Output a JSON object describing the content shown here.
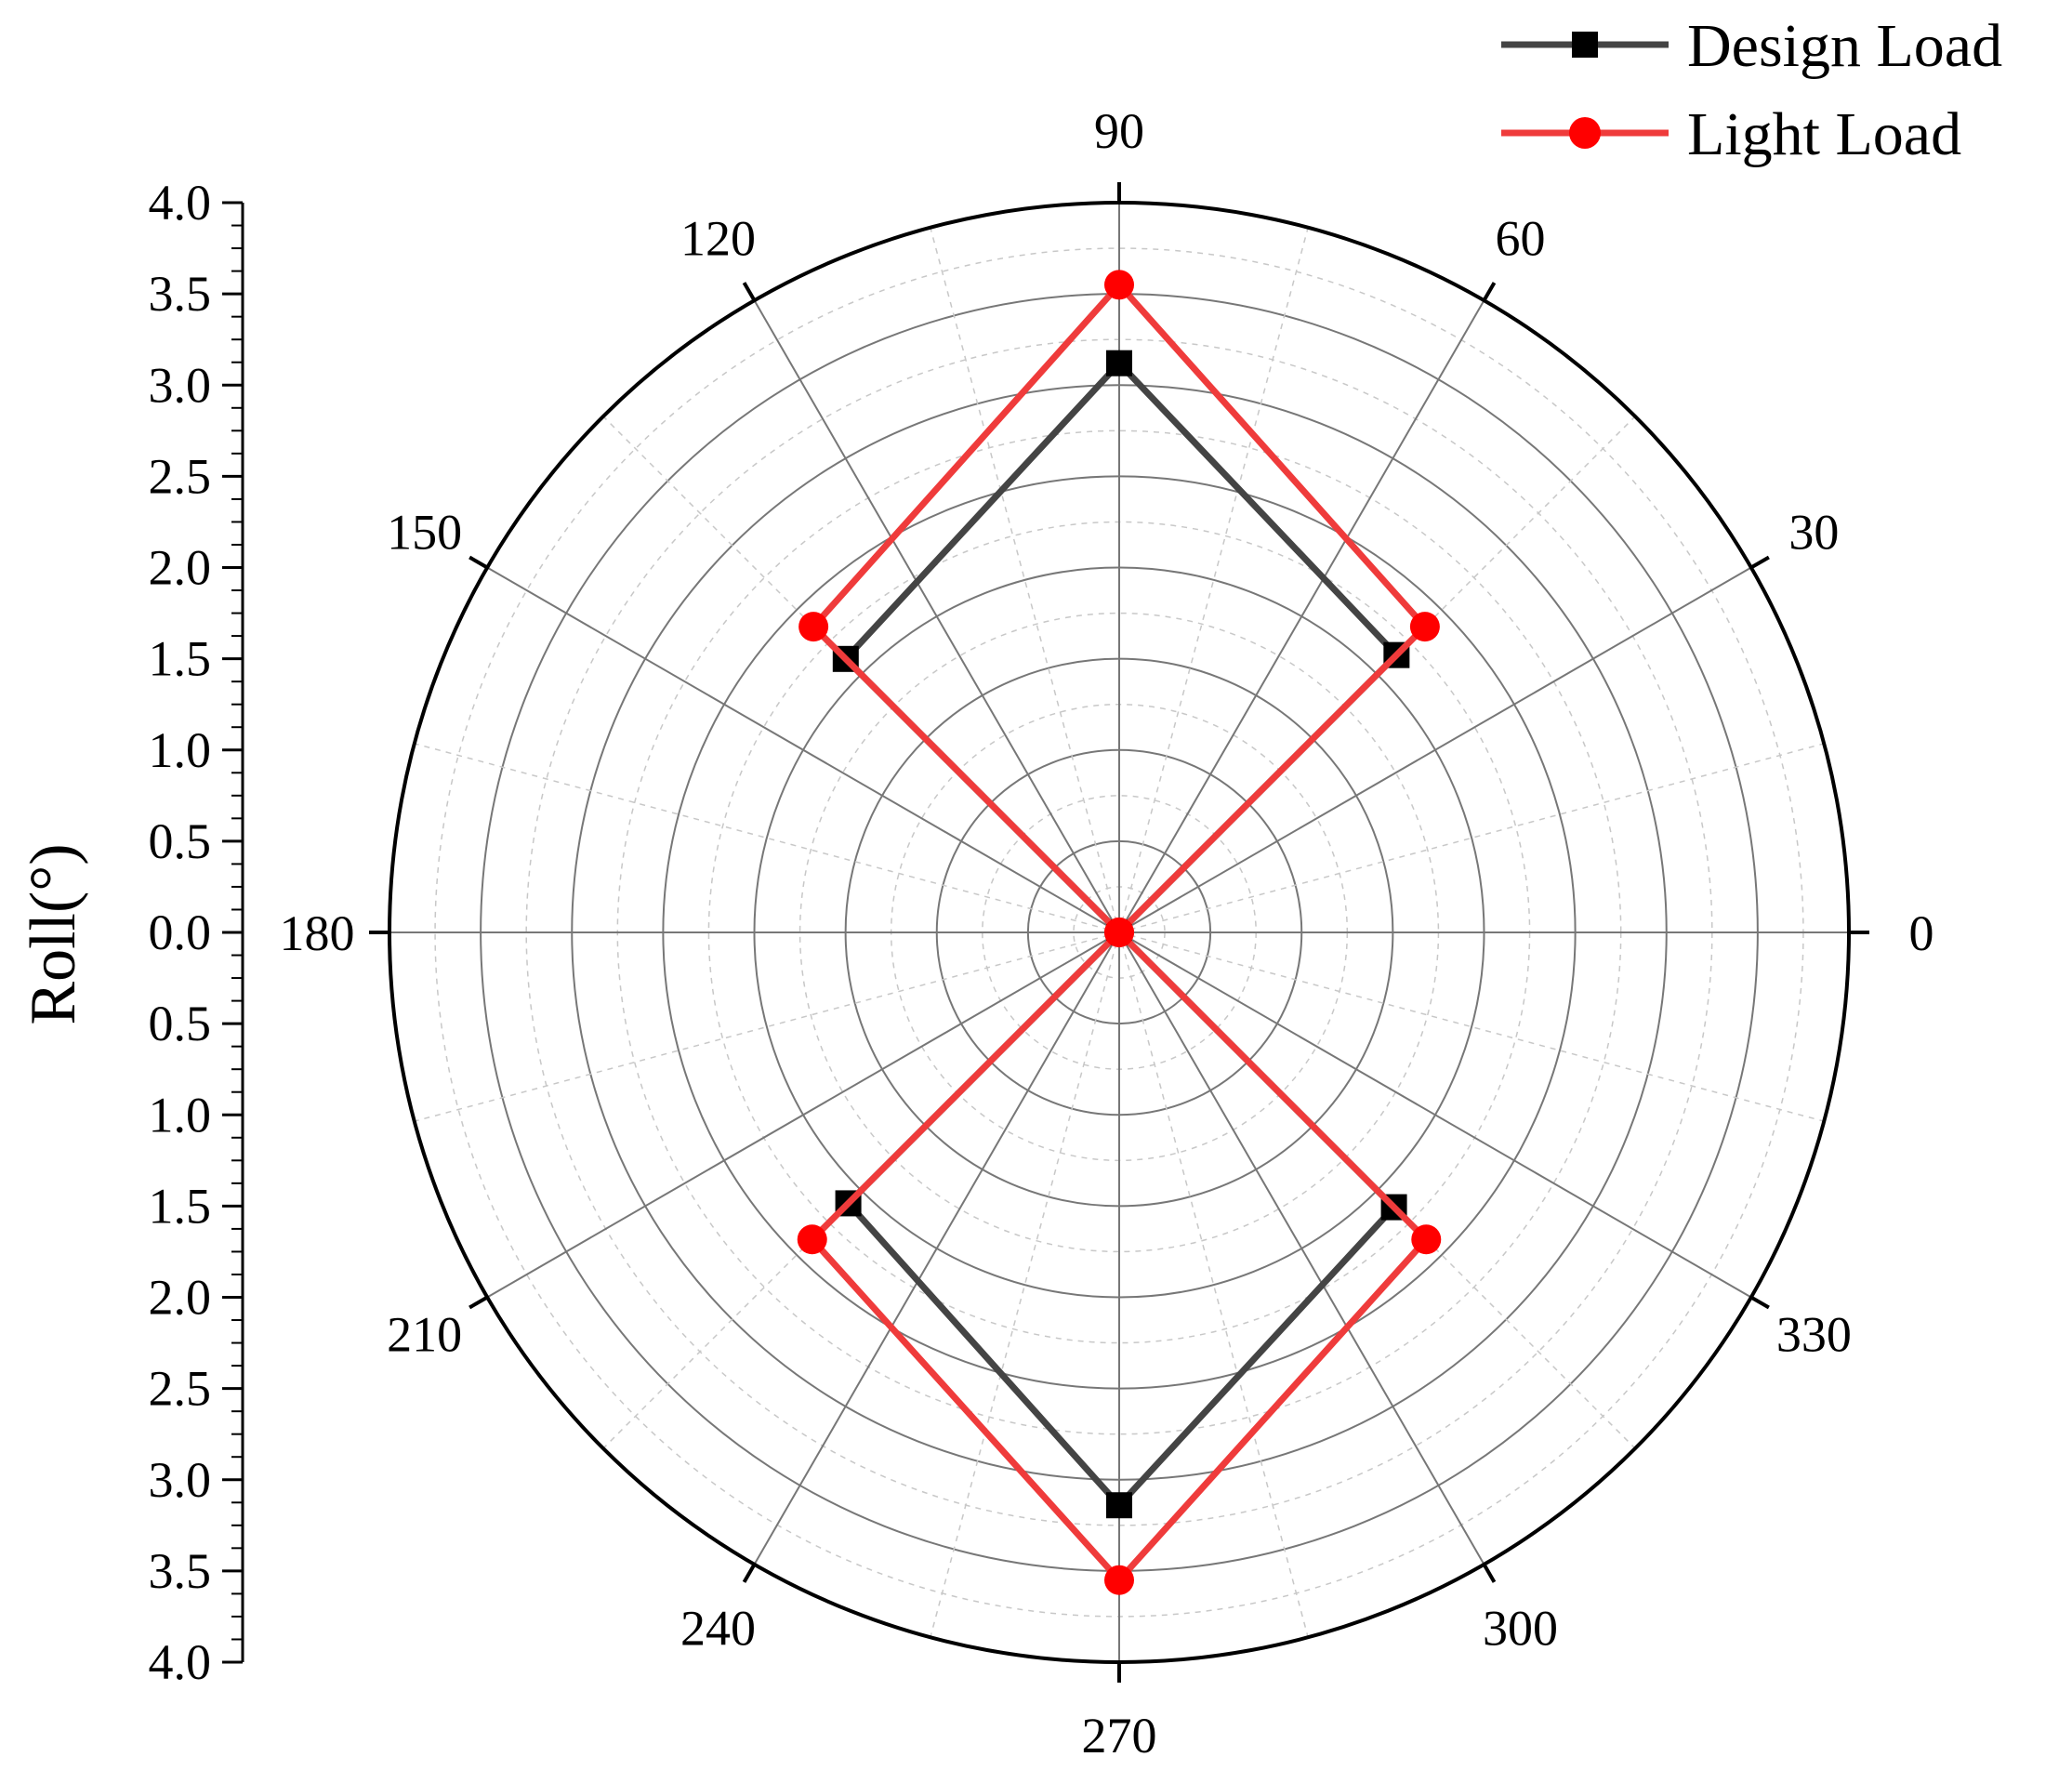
{
  "chart_data": {
    "type": "polar-line",
    "ylabel": "Roll(°)",
    "radial_axis": {
      "min": 0,
      "max": 4.0,
      "major_step": 0.5,
      "tick_labels": [
        "4.0",
        "3.5",
        "3.0",
        "2.5",
        "2.0",
        "1.5",
        "1.0",
        "0.5",
        "0.0",
        "0.5",
        "1.0",
        "1.5",
        "2.0",
        "2.5",
        "3.0",
        "3.5",
        "4.0"
      ]
    },
    "angular_axis": {
      "unit": "degrees",
      "labels": [
        "0",
        "30",
        "60",
        "90",
        "120",
        "150",
        "180",
        "210",
        "240",
        "270",
        "300",
        "330"
      ]
    },
    "grid": true,
    "legend_position": "top-right",
    "series": [
      {
        "name": "Design Load",
        "color": "#444444",
        "marker": "square",
        "marker_color": "#000000",
        "points": [
          {
            "theta": 0,
            "r": 0.0
          },
          {
            "theta": 45,
            "r": 2.15
          },
          {
            "theta": 90,
            "r": 3.12
          },
          {
            "theta": 135,
            "r": 2.12
          },
          {
            "theta": 180,
            "r": 0.0
          },
          {
            "theta": 225,
            "r": 2.1
          },
          {
            "theta": 270,
            "r": 3.14
          },
          {
            "theta": 315,
            "r": 2.13
          },
          {
            "theta": 360,
            "r": 0.0
          }
        ]
      },
      {
        "name": "Light Load",
        "color": "#ef3b3b",
        "marker": "circle",
        "marker_color": "#ff0000",
        "points": [
          {
            "theta": 0,
            "r": 0.0
          },
          {
            "theta": 45,
            "r": 2.37
          },
          {
            "theta": 90,
            "r": 3.55
          },
          {
            "theta": 135,
            "r": 2.37
          },
          {
            "theta": 180,
            "r": 0.0
          },
          {
            "theta": 225,
            "r": 2.38
          },
          {
            "theta": 270,
            "r": 3.55
          },
          {
            "theta": 315,
            "r": 2.38
          },
          {
            "theta": 360,
            "r": 0.0
          }
        ]
      }
    ]
  }
}
